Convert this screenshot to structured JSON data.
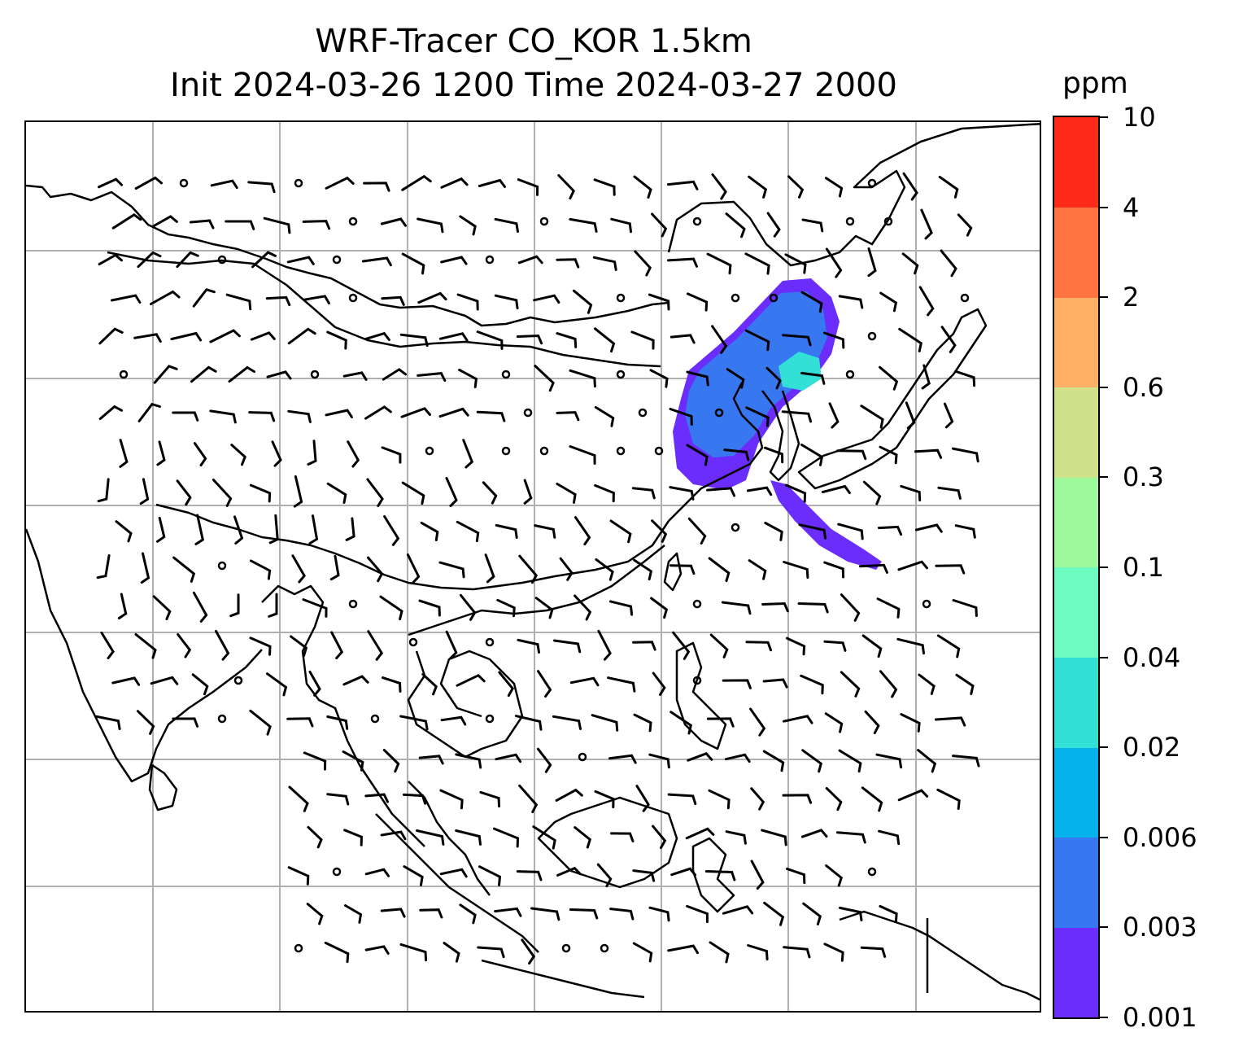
{
  "title": {
    "line1": "WRF-Tracer CO_KOR 1.5km",
    "line2": "Init 2024-03-26 1200 Time 2024-03-27 2000"
  },
  "colorbar": {
    "unit": "ppm",
    "levels": [
      "0.001",
      "0.003",
      "0.006",
      "0.02",
      "0.04",
      "0.1",
      "0.3",
      "0.6",
      "2",
      "4",
      "10"
    ],
    "colors": [
      "#6a2dfb",
      "#3777f0",
      "#06b2ec",
      "#32e0d6",
      "#6cfbc1",
      "#9cfa9c",
      "#d0e18a",
      "#ffb064",
      "#ff7440",
      "#ff2a19"
    ]
  },
  "map": {
    "gridlines": "on",
    "gridline_color": "#b0b0b0",
    "plume_color": "#3777f0",
    "plume_edge_color": "#6a2dfb",
    "plume_core_color": "#32e0d6"
  }
}
